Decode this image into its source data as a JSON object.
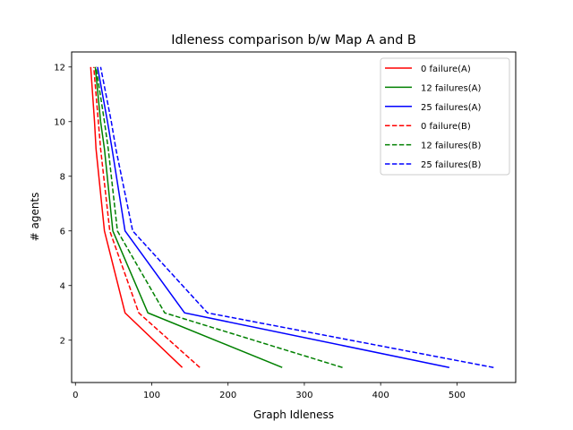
{
  "chart_data": {
    "type": "line",
    "title": "Idleness comparison b/w Map A and B",
    "xlabel": "Graph Idleness",
    "ylabel": "# agents",
    "xlim": [
      -5,
      577
    ],
    "ylim": [
      0.45,
      12.55
    ],
    "xticks": [
      0,
      100,
      200,
      300,
      400,
      500
    ],
    "yticks": [
      2,
      4,
      6,
      8,
      10,
      12
    ],
    "grid": false,
    "legend_position": "top-right",
    "series": [
      {
        "name": "0 failure(A)",
        "color": "#ff0000",
        "dash": "solid",
        "x": [
          140,
          65,
          38,
          27,
          25,
          20
        ],
        "y": [
          1,
          3,
          6,
          9,
          10,
          12
        ]
      },
      {
        "name": "12 failures(A)",
        "color": "#008000",
        "dash": "solid",
        "x": [
          271,
          95,
          49,
          38,
          33,
          26
        ],
        "y": [
          1,
          3,
          6,
          9,
          10,
          12
        ]
      },
      {
        "name": "25 failures(A)",
        "color": "#0000ff",
        "dash": "solid",
        "x": [
          490,
          143,
          65,
          48,
          42,
          29
        ],
        "y": [
          1,
          3,
          6,
          9,
          10,
          12
        ]
      },
      {
        "name": "0 failure(B)",
        "color": "#ff0000",
        "dash": "dashed",
        "x": [
          163,
          83,
          45,
          33,
          30,
          24
        ],
        "y": [
          1,
          3,
          6,
          9,
          10,
          12
        ]
      },
      {
        "name": "12 failures(B)",
        "color": "#008000",
        "dash": "dashed",
        "x": [
          350,
          117,
          55,
          43,
          38,
          27
        ],
        "y": [
          1,
          3,
          6,
          9,
          10,
          12
        ]
      },
      {
        "name": "25 failures(B)",
        "color": "#0000ff",
        "dash": "dashed",
        "x": [
          548,
          173,
          75,
          53,
          47,
          33
        ],
        "y": [
          1,
          3,
          6,
          9,
          10,
          12
        ]
      }
    ]
  }
}
